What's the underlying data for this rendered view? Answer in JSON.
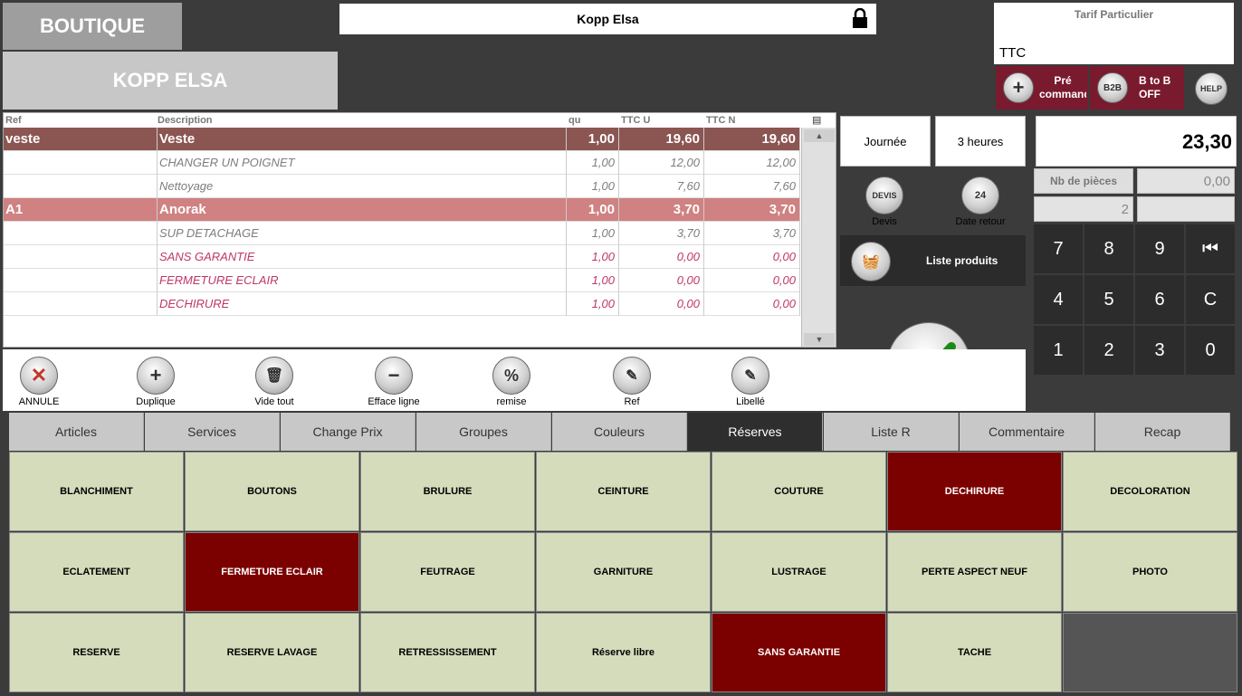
{
  "header": {
    "shop": "BOUTIQUE",
    "client_upper": "KOPP ELSA",
    "client_name": "Kopp Elsa",
    "tarif_label": "Tarif Particulier",
    "tarif_ttc": "TTC",
    "pre_commande": "Pré commande",
    "b2b_icon": "B2B",
    "b2b_label": "B to B OFF",
    "help_icon": "HELP"
  },
  "ticket": {
    "columns": {
      "ref": "Ref",
      "desc": "Description",
      "qu": "qu",
      "ttcu": "TTC U",
      "ttcn": "TTC N"
    },
    "rows": [
      {
        "ref": "veste",
        "desc": "Veste",
        "qu": "1,00",
        "ttcu": "19,60",
        "ttcn": "19,60"
      },
      {
        "ref": "",
        "desc": "CHANGER UN POIGNET",
        "qu": "1,00",
        "ttcu": "12,00",
        "ttcn": "12,00"
      },
      {
        "ref": "",
        "desc": "Nettoyage",
        "qu": "1,00",
        "ttcu": "7,60",
        "ttcn": "7,60"
      },
      {
        "ref": "A1",
        "desc": "Anorak",
        "qu": "1,00",
        "ttcu": "3,70",
        "ttcn": "3,70"
      },
      {
        "ref": "",
        "desc": "SUP DETACHAGE",
        "qu": "1,00",
        "ttcu": "3,70",
        "ttcn": "3,70"
      },
      {
        "ref": "",
        "desc": "SANS GARANTIE",
        "qu": "1,00",
        "ttcu": "0,00",
        "ttcn": "0,00"
      },
      {
        "ref": "",
        "desc": "FERMETURE ECLAIR",
        "qu": "1,00",
        "ttcu": "0,00",
        "ttcn": "0,00"
      },
      {
        "ref": "",
        "desc": "DECHIRURE",
        "qu": "1,00",
        "ttcu": "0,00",
        "ttcn": "0,00"
      }
    ]
  },
  "side": {
    "journee": "Journée",
    "trois_heures": "3 heures",
    "total": "23,30",
    "nb_pieces_label": "Nb de pièces",
    "nb_pieces_value": "0,00",
    "count_value": "2",
    "devis_icon": "DEVIS",
    "devis_label": "Devis",
    "date_icon": "24",
    "date_retour_label": "Date retour",
    "liste_produits": "Liste produits"
  },
  "keypad": [
    "7",
    "8",
    "9",
    "⏮",
    "4",
    "5",
    "6",
    "C",
    "1",
    "2",
    "3",
    "0"
  ],
  "actions": {
    "annule": "ANNULE",
    "duplique": "Duplique",
    "vide_tout": "Vide tout",
    "efface_ligne": "Efface ligne",
    "remise": "remise",
    "ref": "Ref",
    "libelle": "Libellé"
  },
  "tabs": [
    "Articles",
    "Services",
    "Change Prix",
    "Groupes",
    "Couleurs",
    "Réserves",
    "Liste R",
    "Commentaire",
    "Recap"
  ],
  "grid": [
    "BLANCHIMENT",
    "BOUTONS",
    "BRULURE",
    "CEINTURE",
    "COUTURE",
    "DECHIRURE",
    "DECOLORATION",
    "ECLATEMENT",
    "FERMETURE ECLAIR",
    "FEUTRAGE",
    "GARNITURE",
    "LUSTRAGE",
    "PERTE ASPECT NEUF",
    "PHOTO",
    "RESERVE",
    "RESERVE LAVAGE",
    "RETRESSISSEMENT",
    "Réserve libre",
    "SANS GARANTIE",
    "TACHE",
    ""
  ],
  "colors": {
    "selected": "#7b0000",
    "cell": "#d4dcbb",
    "row_main": "#8b5552",
    "row_main2": "#d08181"
  }
}
